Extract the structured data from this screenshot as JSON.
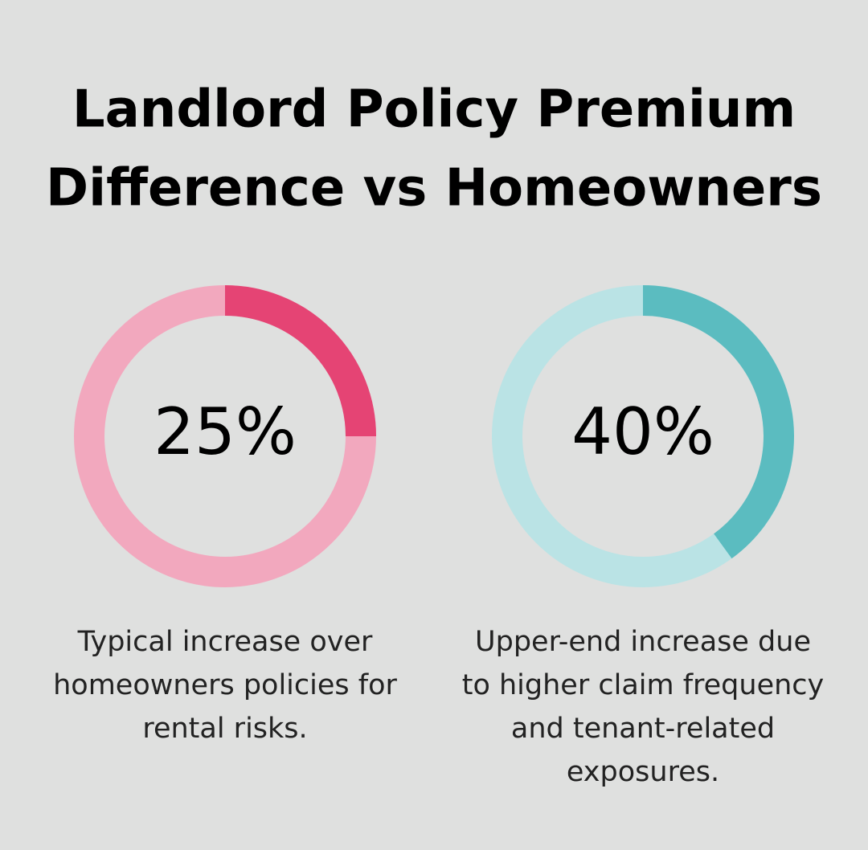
{
  "title": [
    "Landlord Policy Premium",
    "Difference vs Homeowners"
  ],
  "chart_data": [
    {
      "type": "donut",
      "values": [
        25
      ],
      "value_labels": [
        "25%"
      ],
      "ylim": [
        0,
        100
      ],
      "color": "#e54474",
      "track_color": "#f2a8be",
      "caption": [
        "Typical increase over",
        "homeowners policies for",
        "rental risks."
      ]
    },
    {
      "type": "donut",
      "values": [
        40
      ],
      "value_labels": [
        "40%"
      ],
      "ylim": [
        0,
        100
      ],
      "color": "#5bbcc0",
      "track_color": "#bae3e5",
      "caption": [
        "Upper-end increase due",
        "to higher claim frequency",
        "and tenant-related",
        "exposures."
      ]
    }
  ]
}
